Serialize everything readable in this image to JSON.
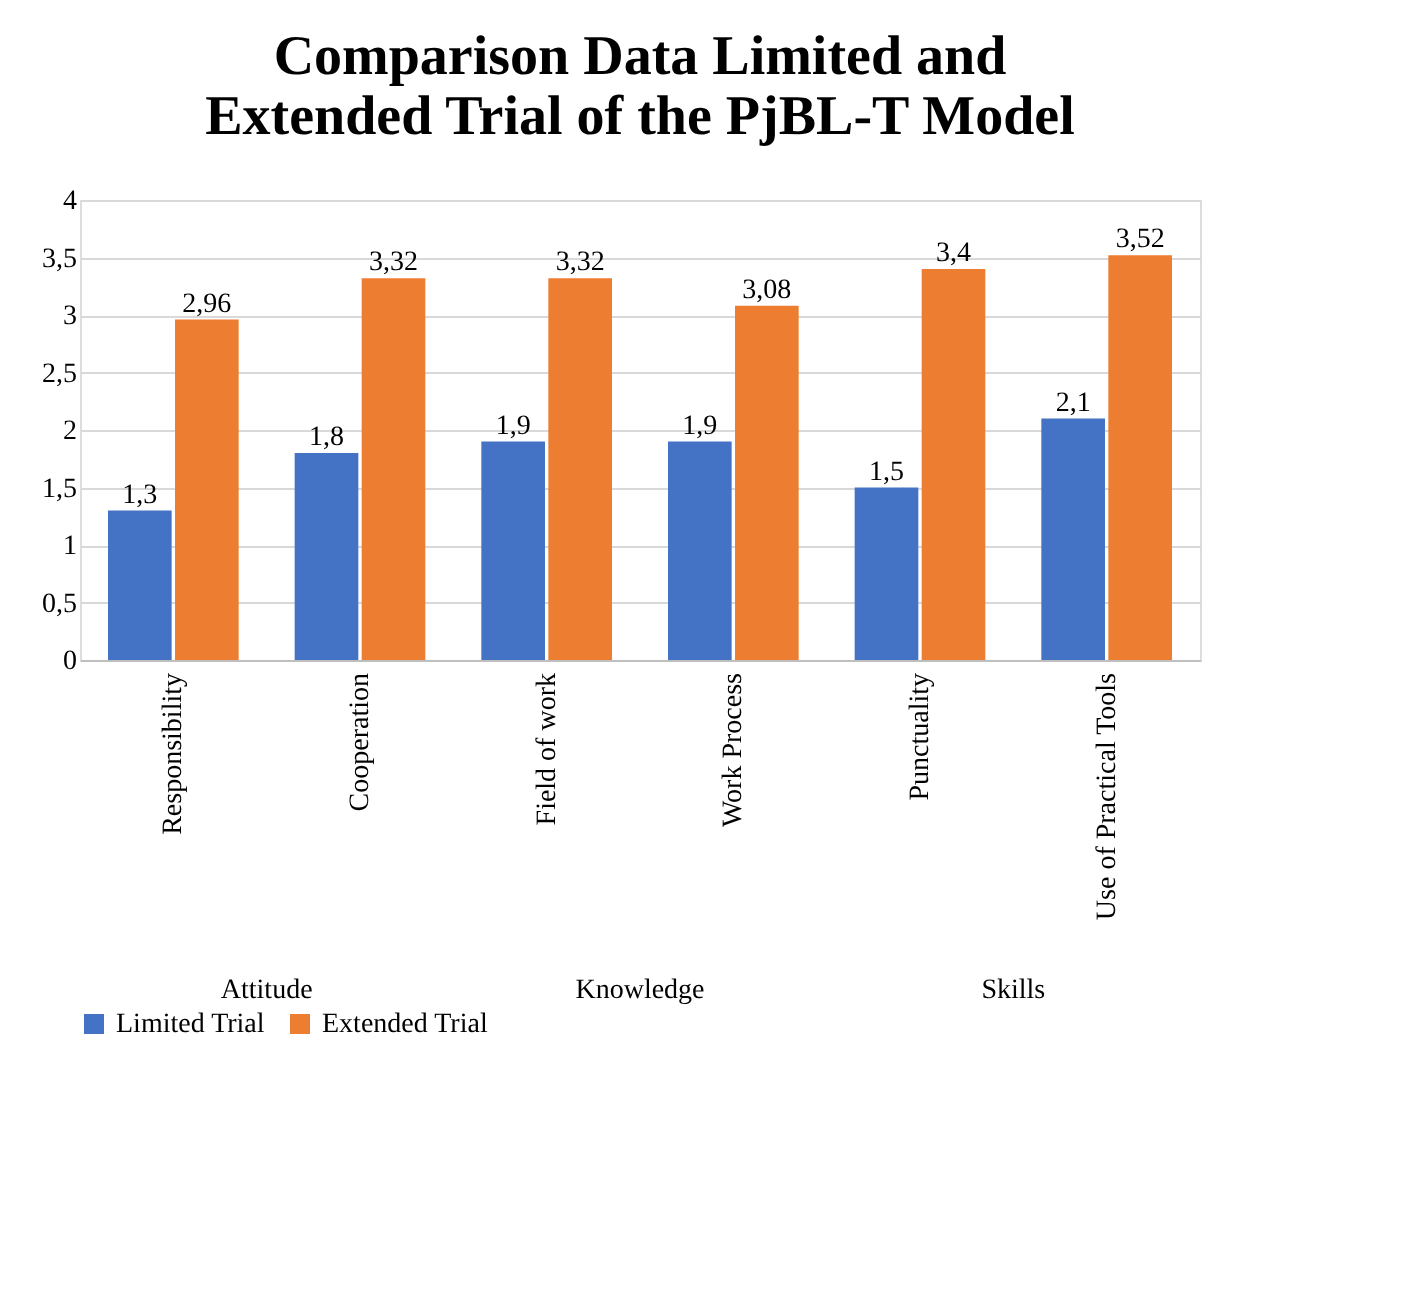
{
  "chart_data": {
    "type": "bar",
    "title": "Comparison Data Limited and Extended Trial of the PjBL-T Model",
    "categories": [
      "Responsibility",
      "Cooperation",
      "Field of work",
      "Work Process",
      "Punctuality",
      "Use of Practical Tools"
    ],
    "series": [
      {
        "name": "Limited Trial",
        "color": "#4472c4",
        "values": [
          1.3,
          1.8,
          1.9,
          1.9,
          1.5,
          2.1
        ],
        "value_labels": [
          "1,3",
          "1,8",
          "1,9",
          "1,9",
          "1,5",
          "2,1"
        ]
      },
      {
        "name": "Extended Trial",
        "color": "#ed7d31",
        "values": [
          2.96,
          3.32,
          3.32,
          3.08,
          3.4,
          3.52
        ],
        "value_labels": [
          "2,96",
          "3,32",
          "3,32",
          "3,08",
          "3,4",
          "3,52"
        ]
      }
    ],
    "ylim": [
      0,
      4
    ],
    "yticks": [
      0,
      {
        "value": 0.5,
        "label": "0,5"
      },
      1,
      {
        "value": 1.5,
        "label": "1,5"
      },
      2,
      {
        "value": 2.5,
        "label": "2,5"
      },
      3,
      {
        "value": 3.5,
        "label": "3,5"
      },
      4
    ],
    "annotations": [
      "Attitude",
      "Knowledge",
      "Skills"
    ],
    "grid": "y",
    "legend": "bottom"
  }
}
